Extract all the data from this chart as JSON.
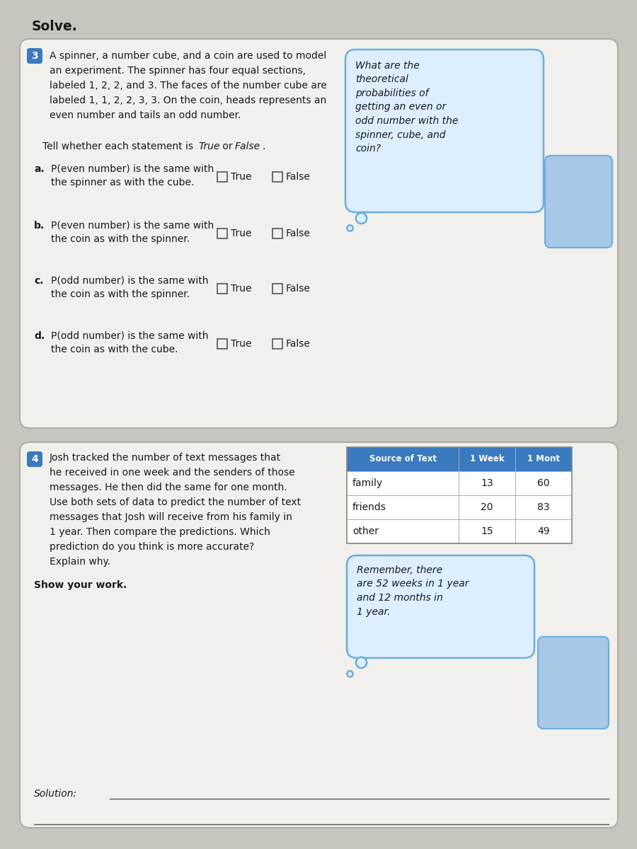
{
  "bg_color": "#c8c4be",
  "card_color": "#f2f0ed",
  "card_edge_color": "#b0ada8",
  "title": "Solve.",
  "q3_number_color": "#3a7abf",
  "q3_number": "3",
  "q3_main_text_line1": "A spinner, a number cube, and a coin are used to model",
  "q3_main_text_line2": "an experiment. The spinner has four equal sections,",
  "q3_main_text_line3": "labeled 1, 2, 2, and 3. The faces of the number cube are",
  "q3_main_text_line4": "labeled 1, 1, 2, 2, 3, 3. On the coin, heads represents an",
  "q3_main_text_line5": "even number and tails an odd number.",
  "q3_tell_text": "Tell whether each statement is ",
  "q3_tell_italic1": "True",
  "q3_tell_mid": " or ",
  "q3_tell_italic2": "False",
  "q3_tell_end": ".",
  "q3_bubble_text": "What are the\ntheoretical\nprobabilities of\ngetting an even or\nodd number with the\nspinner, cube, and\ncoin?",
  "q3_bubble_color": "#ddeeff",
  "q3_bubble_edge": "#6aaedc",
  "q3_items": [
    {
      "label": "a.",
      "text1": "P(even number) is the same with",
      "text2": "the spinner as with the cube."
    },
    {
      "label": "b.",
      "text1": "P(even number) is the same with",
      "text2": "the coin as with the spinner."
    },
    {
      "label": "c.",
      "text1": "P(odd number) is the same with",
      "text2": "the coin as with the spinner."
    },
    {
      "label": "d.",
      "text1": "P(odd number) is the same with",
      "text2": "the coin as with the cube."
    }
  ],
  "q4_number_color": "#3a7abf",
  "q4_number": "4",
  "q4_main_lines": [
    "Josh tracked the number of text messages that",
    "he received in one week and the senders of those",
    "messages. He then did the same for one month.",
    "Use both sets of data to predict the number of text",
    "messages that Josh will receive from his family in",
    "1 year. Then compare the predictions. Which",
    "prediction do you think is more accurate?",
    "Explain why."
  ],
  "q4_show_work": "Show your work.",
  "q4_solution": "Solution:",
  "q4_table_header": [
    "Source of Text",
    "1 Week",
    "1 Mont"
  ],
  "q4_table_header_color": "#3a7abf",
  "q4_table_header_text_color": "#ffffff",
  "q4_table_rows": [
    [
      "family",
      "13",
      "60"
    ],
    [
      "friends",
      "20",
      "83"
    ],
    [
      "other",
      "15",
      "49"
    ]
  ],
  "q4_bubble_text": "Remember, there\nare 52 weeks in 1 year\nand 12 months in\n1 year.",
  "q4_bubble_color": "#ddeeff",
  "q4_bubble_edge": "#6aaedc",
  "checkbox_color": "#f2f0ed",
  "checkbox_edge": "#555555",
  "char_color": "#a8c8e8",
  "char_edge": "#6aaedc"
}
